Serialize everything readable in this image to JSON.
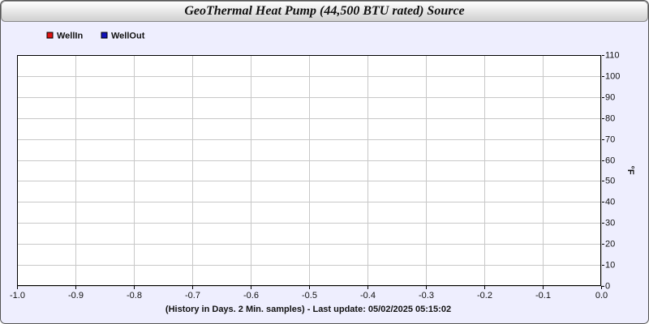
{
  "chart_data": {
    "type": "line",
    "title": "GeoThermal Heat Pump (44,500 BTU rated) Source",
    "x_label": "(History in Days. 2 Min. samples) - Last update: 05/02/2025 05:15:02",
    "y_label": "°F",
    "x": [],
    "series": [
      {
        "name": "WellIn",
        "color": "#dd1111",
        "values": []
      },
      {
        "name": "WellOut",
        "color": "#1111bb",
        "values": []
      }
    ],
    "xlim": [
      -1,
      0
    ],
    "xticks": [
      {
        "value": -1,
        "label": "-1.0"
      },
      -0.9,
      -0.8,
      -0.7,
      -0.6,
      -0.5,
      -0.4,
      -0.3,
      -0.2,
      -0.1,
      {
        "value": 0,
        "label": "0.0"
      }
    ],
    "ylim": [
      0,
      110
    ],
    "yticks": [
      0,
      10,
      20,
      30,
      40,
      50,
      60,
      70,
      80,
      90,
      100,
      110
    ],
    "grid": true,
    "legend": "upper left"
  }
}
